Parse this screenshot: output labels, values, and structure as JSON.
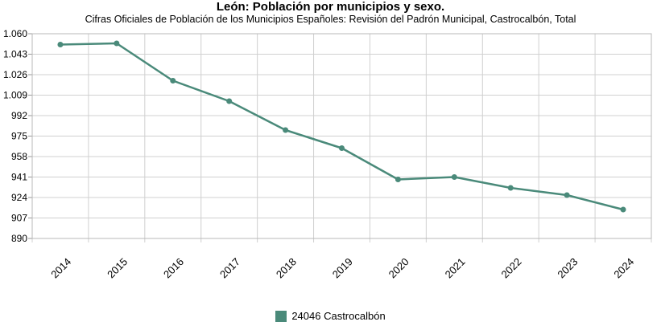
{
  "chart_data": {
    "type": "line",
    "title": "León: Población por municipios y sexo.",
    "subtitle": "Cifras Oficiales de Población de los Municipios Españoles: Revisión del Padrón Municipal, Castrocalbón, Total",
    "xlabel": "",
    "ylabel": "",
    "categories": [
      "2014",
      "2015",
      "2016",
      "2017",
      "2018",
      "2019",
      "2020",
      "2021",
      "2022",
      "2023",
      "2024"
    ],
    "series": [
      {
        "name": "24046 Castrocalbón",
        "color": "#4a8a7a",
        "values": [
          1051,
          1052,
          1021,
          1004,
          980,
          965,
          939,
          941,
          932,
          926,
          914
        ]
      }
    ],
    "ylim": [
      890,
      1060
    ],
    "yticks": [
      "1.060",
      "1.043",
      "1.026",
      "1.009",
      "992",
      "975",
      "958",
      "941",
      "924",
      "907",
      "890"
    ],
    "grid": true,
    "legend_position": "bottom"
  }
}
